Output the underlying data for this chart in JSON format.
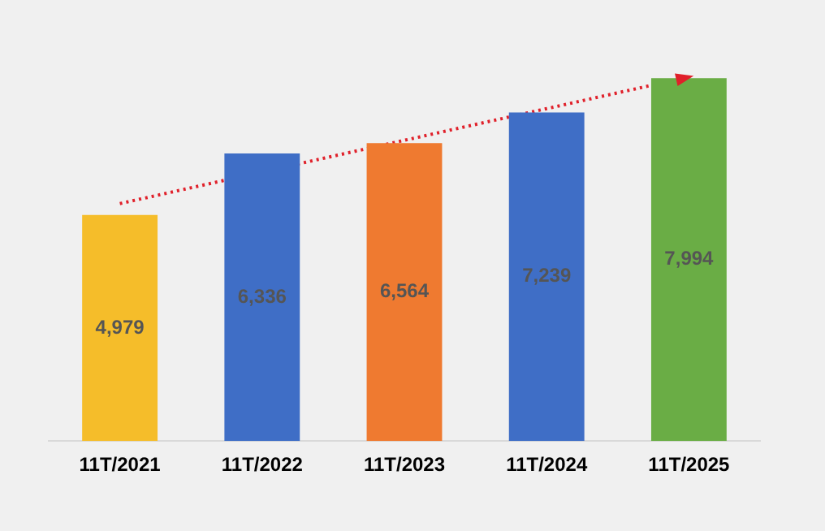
{
  "chart_data": {
    "type": "bar",
    "categories": [
      "11T/2021",
      "11T/2022",
      "11T/2023",
      "11T/2024",
      "11T/2025"
    ],
    "series": [
      {
        "values": [
          4979,
          6336,
          6564,
          7239,
          7994
        ],
        "colors": [
          "#f5bd2a",
          "#3f6ec6",
          "#ef7a30",
          "#3f6ec6",
          "#6aad45"
        ],
        "value_labels": [
          "4,979",
          "6,336",
          "6,564",
          "7,239",
          "7,994"
        ]
      },
      {
        "type": "line",
        "x": [
          "11T/2021",
          "11T/2025"
        ],
        "values": [
          5230,
          8020
        ],
        "color": "#e0202a",
        "line_style": "dotted"
      }
    ],
    "grid": false,
    "legend": false
  }
}
